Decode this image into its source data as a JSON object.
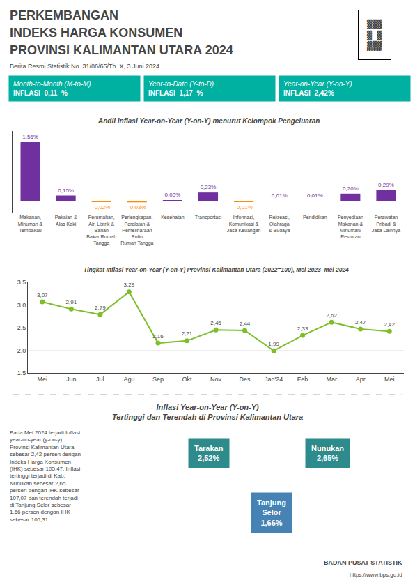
{
  "title": "PERKEMBANGAN\nINDEKS HARGA KONSUMEN\nPROVINSI KALIMANTAN UTARA 2024",
  "subtitle": "Berita Resmi Statistik No. 31/06/65/Th. X, 3 Juni 2024",
  "annotations": [
    {
      "text": "Month-to-Month (M-to-M)\nINFLASI  0,11  %",
      "color": "#00B0A0"
    },
    {
      "text": "Year-to-Date (Y-to-D)\nINFLASI  1,17  %",
      "color": "#00B0A0"
    },
    {
      "text": "Year-on-Year (Y-on-Y)\nINFLASI  2,42%",
      "color": "#00B0A0"
    },
    {
      "text": "▓▓▓\n▓ ▓\n▓▓▓"
    },
    {
      "text": "Inflasi Year-on-Year (Y-on-Y)\nTertinggi dan Terendah di Provinsi Kalimantan Utara"
    },
    {
      "text": "Pada Mei 2024 terjadi Inflasi\nyear-on-year (y-on-y)\nProvinsi Kalimantan Utara\nsebesar 2,42 persen dengan\nIndeks Harga Konsumen\n(IHK) sebesar 105,47. Inflasi\ntertinggi terjadi di Kab.\nNunukan sebesar 2,65\npersen dengan IHK sebesar\n107,07 dan terendah terjadi\ndi Tanjung Selor sebesar\n1,66 persen dengan IHK\nsebesar 105,31"
    },
    {
      "text": "Tarakan\n2,52%",
      "color": "#2E8B8B"
    },
    {
      "text": "Nunukan\n2,65%",
      "color": "#2E8B8B"
    },
    {
      "text": "Tanjung\nSelor\n1,66%",
      "color": "#4682B4"
    },
    {
      "text": "BADAN PUSAT STATISTIK"
    },
    {
      "text": "https://www.bps.go.id"
    }
  ],
  "chart_data": [
    {
      "type": "bar",
      "title": "Andil Inflasi Year-on-Year (Y-on-Y) menurut Kelompok Pengeluaran",
      "categories": [
        "Makanan,\nMinuman &\nTembakau",
        "Pakaian &\nAlas Kaki",
        "Perumahan,\nAir, Listrik &\nBahan\nBakar Rumah\nTangga",
        "Perlengkapan,\nPeralatan &\nPemeliharaan\nRutin\nRumah Tangga",
        "Kesehatan",
        "Transportasi",
        "Informasi,\nKomunikasi &\nJasa Keuangan",
        "Rekreasi,\nOlahraga\n& Budaya",
        "Pendidikan",
        "Penyediaan\nMakanan &\nMinuman/\nRestoran",
        "Perawatan\nPribadi &\nJasa Lainnya"
      ],
      "values": [
        1.56,
        0.15,
        -0.02,
        -0.03,
        0.03,
        0.23,
        -0.01,
        0.01,
        0.01,
        0.2,
        0.29
      ],
      "value_labels": [
        "1,56%",
        "0,15%",
        "-0,02%",
        "-0,03%",
        "0,03%",
        "0,23%",
        "-0,01%",
        "0,01%",
        "0,01%",
        "0,20%",
        "0,29%"
      ],
      "colors": [
        "#7030A0",
        "#7030A0",
        "#FF8C00",
        "#FF8C00",
        "#7030A0",
        "#7030A0",
        "#FF8C00",
        "#7030A0",
        "#7030A0",
        "#7030A0",
        "#7030A0"
      ],
      "data_labels": true,
      "ylim": [
        -0.3,
        1.85
      ],
      "yticks": [],
      "tick_labels": "x",
      "grid": false
    },
    {
      "type": "line",
      "title": "Tingkat Inflasi Year-on-Year (Y-on-Y) Provinsi Kalimantan Utara (2022=100), Mei 2023–Mei 2024",
      "categories": [
        "Mei",
        "Jun",
        "Jul",
        "Agu",
        "Sep",
        "Okt",
        "Nov",
        "Des",
        "Jan'24",
        "Feb",
        "Mar",
        "Apr",
        "Mei"
      ],
      "values": [
        3.07,
        2.91,
        2.79,
        3.29,
        2.16,
        2.21,
        2.45,
        2.44,
        1.99,
        2.33,
        2.62,
        2.47,
        2.42
      ],
      "value_labels": [
        "3,07",
        "2,91",
        "2,79",
        "3,29",
        "2,16",
        "2,21",
        "2,45",
        "2,44",
        "1,99",
        "2,33",
        "2,62",
        "2,47",
        "2,42"
      ],
      "color": "#7CBF26",
      "marker": "circle",
      "data_labels": true,
      "ylim": [
        1.5,
        3.5
      ],
      "yticks": [
        1.5,
        {
          "value": 2.0,
          "label": "2.0"
        },
        2.5,
        {
          "value": 3.0,
          "label": "3.0"
        },
        3.5
      ],
      "grid": true
    }
  ]
}
